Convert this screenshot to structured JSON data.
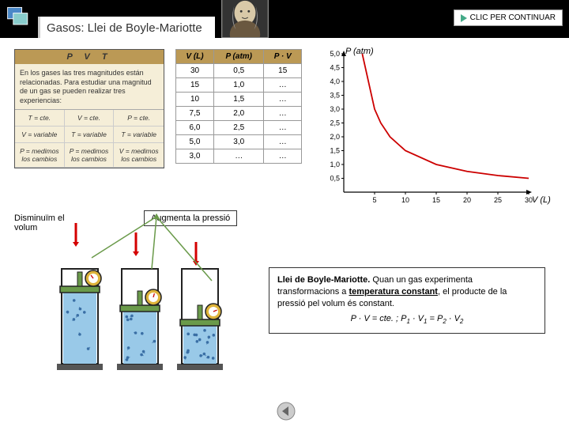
{
  "header": {
    "title": "Gasos: Llei de Boyle-Mariotte",
    "continue_label": "CLIC PER CONTINUAR"
  },
  "pvt_box": {
    "header": "P  V  T",
    "intro": "En los gases las tres magnitudes están relacionadas. Para estudiar una magnitud de un gas se pueden realizar tres experiencias:",
    "cells": [
      "T = cte.",
      "V = cte.",
      "P = cte.",
      "V = variable",
      "T = variable",
      "T = variable",
      "P = medimos los cambios",
      "P = medimos los cambios",
      "V = medimos los cambios"
    ]
  },
  "data_table": {
    "columns": [
      "V (L)",
      "P (atm)",
      "P · V"
    ],
    "rows": [
      [
        "30",
        "0,5",
        "15"
      ],
      [
        "15",
        "1,0",
        "…"
      ],
      [
        "10",
        "1,5",
        "…"
      ],
      [
        "7,5",
        "2,0",
        "…"
      ],
      [
        "6,0",
        "2,5",
        "…"
      ],
      [
        "5,0",
        "3,0",
        "…"
      ],
      [
        "3,0",
        "…",
        "…"
      ]
    ]
  },
  "chart": {
    "type": "line",
    "ylabel": "P (atm)",
    "xlabel": "V (L)",
    "ylim": [
      0,
      5.0
    ],
    "xlim": [
      0,
      30
    ],
    "yticks": [
      0.5,
      1.0,
      1.5,
      2.0,
      2.5,
      3.0,
      3.5,
      4.0,
      4.5,
      5.0
    ],
    "ytick_labels": [
      "0,5",
      "1,0",
      "1,5",
      "2,0",
      "2,5",
      "3,0",
      "3,5",
      "4,0",
      "4,5",
      "5,0"
    ],
    "xticks": [
      5,
      10,
      15,
      20,
      25,
      30
    ],
    "xtick_labels": [
      "5",
      "10",
      "15",
      "20",
      "25",
      "30"
    ],
    "curve_color": "#cc0000",
    "axis_color": "#000000",
    "background_color": "#ffffff",
    "curve_points": [
      [
        3,
        5.0
      ],
      [
        5,
        3.0
      ],
      [
        6,
        2.5
      ],
      [
        7.5,
        2.0
      ],
      [
        10,
        1.5
      ],
      [
        15,
        1.0
      ],
      [
        20,
        0.75
      ],
      [
        25,
        0.6
      ],
      [
        30,
        0.5
      ]
    ],
    "tick_fontsize": 9,
    "label_fontsize": 11,
    "line_width": 1.8
  },
  "labels": {
    "decrease_volume": "Disminuïm el volum",
    "increase_pressure": "Augmenta la pressió"
  },
  "pistons": {
    "outline_color": "#222",
    "body_color": "#a9b8c9",
    "liquid_color": "#99c9e8",
    "piston_head_color": "#6a9a4a",
    "gauge_color": "#deb33a",
    "gauge_needle_color": "#cc0000",
    "base_color": "#555",
    "heights": [
      0.75,
      0.55,
      0.4
    ],
    "particle_color": "#3a6fa5",
    "arrow_red_color": "#d40000",
    "arrow_green_color": "#6a9a4a"
  },
  "law": {
    "title": "Llei de Boyle-Mariotte.",
    "text": " Quan un gas experimenta transformacions a temperatura constant, el producte de la pressió pel volum és constant.",
    "underline_phrase": "temperatura constant",
    "formula": "P · V = cte.  ;  P₁ · V₁ = P₂ · V₂"
  },
  "colors": {
    "header_bg": "#000000",
    "title_text": "#333333",
    "button_bg": "#ffffff",
    "button_border": "#999999",
    "pvt_bg": "#f5eed8",
    "pvt_header_bg": "#bb9955"
  }
}
